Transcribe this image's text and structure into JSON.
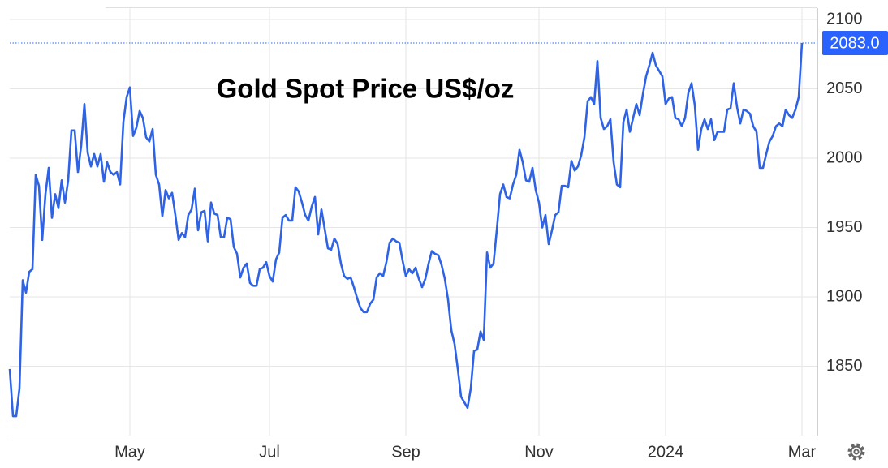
{
  "chart_data": {
    "type": "line",
    "title": "Gold Spot Price US$/oz",
    "categories": [
      null,
      null,
      null,
      null,
      null,
      null,
      null,
      null,
      null,
      null,
      null,
      null,
      null,
      null,
      null,
      null,
      null,
      null,
      null,
      null,
      null,
      null,
      null,
      null,
      null,
      null,
      null,
      null,
      null,
      null,
      null,
      null,
      null,
      null,
      null,
      null,
      null,
      "May",
      null,
      null,
      null,
      null,
      null,
      null,
      null,
      null,
      null,
      null,
      null,
      null,
      null,
      null,
      null,
      null,
      null,
      null,
      null,
      null,
      null,
      null,
      null,
      null,
      null,
      null,
      null,
      null,
      null,
      null,
      null,
      null,
      null,
      null,
      null,
      null,
      null,
      null,
      null,
      null,
      null,
      null,
      "Jul",
      null,
      null,
      null,
      null,
      null,
      null,
      null,
      null,
      null,
      null,
      null,
      null,
      null,
      null,
      null,
      null,
      null,
      null,
      null,
      null,
      null,
      null,
      null,
      null,
      null,
      null,
      null,
      null,
      null,
      null,
      null,
      null,
      null,
      null,
      null,
      null,
      null,
      null,
      null,
      null,
      null,
      "Sep",
      null,
      null,
      null,
      null,
      null,
      null,
      null,
      null,
      null,
      null,
      null,
      null,
      null,
      null,
      null,
      null,
      null,
      null,
      null,
      null,
      null,
      null,
      null,
      null,
      null,
      null,
      null,
      null,
      null,
      null,
      null,
      null,
      null,
      null,
      null,
      null,
      null,
      null,
      null,
      null,
      "Nov",
      null,
      null,
      null,
      null,
      null,
      null,
      null,
      null,
      null,
      null,
      null,
      null,
      null,
      null,
      null,
      null,
      null,
      null,
      null,
      null,
      null,
      null,
      null,
      null,
      null,
      null,
      null,
      null,
      null,
      null,
      null,
      null,
      null,
      null,
      null,
      null,
      null,
      null,
      "2024",
      null,
      null,
      null,
      null,
      null,
      null,
      null,
      null,
      null,
      null,
      null,
      null,
      null,
      null,
      null,
      null,
      null,
      null,
      null,
      null,
      null,
      null,
      null,
      null,
      null,
      null,
      null,
      null,
      null,
      null,
      null,
      null,
      null,
      null,
      null,
      null,
      null,
      null,
      null,
      null,
      null,
      "Mar"
    ],
    "values": [
      1848,
      1814,
      1814,
      1834,
      1912,
      1903,
      1918,
      1920,
      1988,
      1980,
      1941,
      1974,
      1993,
      1957,
      1974,
      1964,
      1984,
      1968,
      1984,
      2020,
      2020,
      1990,
      2009,
      2039,
      2004,
      1994,
      2003,
      1994,
      2003,
      1983,
      1997,
      1990,
      1988,
      1990,
      1981,
      2026,
      2044,
      2051,
      2016,
      2022,
      2034,
      2029,
      2015,
      2012,
      2021,
      1988,
      1981,
      1958,
      1977,
      1971,
      1975,
      1959,
      1941,
      1946,
      1943,
      1959,
      1963,
      1978,
      1948,
      1961,
      1962,
      1940,
      1968,
      1960,
      1959,
      1943,
      1943,
      1957,
      1956,
      1936,
      1931,
      1914,
      1921,
      1924,
      1910,
      1908,
      1908,
      1920,
      1921,
      1925,
      1915,
      1911,
      1927,
      1932,
      1957,
      1959,
      1955,
      1955,
      1979,
      1976,
      1968,
      1959,
      1955,
      1965,
      1972,
      1945,
      1963,
      1949,
      1935,
      1934,
      1942,
      1938,
      1924,
      1915,
      1913,
      1914,
      1907,
      1899,
      1892,
      1889,
      1889,
      1895,
      1898,
      1914,
      1917,
      1915,
      1925,
      1939,
      1942,
      1940,
      1939,
      1926,
      1915,
      1920,
      1917,
      1921,
      1913,
      1907,
      1913,
      1924,
      1933,
      1931,
      1930,
      1923,
      1913,
      1898,
      1876,
      1866,
      1848,
      1828,
      1824,
      1820,
      1834,
      1861,
      1862,
      1875,
      1869,
      1932,
      1921,
      1924,
      1948,
      1974,
      1981,
      1972,
      1971,
      1981,
      1988,
      2006,
      1997,
      1984,
      1983,
      1993,
      1977,
      1968,
      1950,
      1959,
      1938,
      1948,
      1959,
      1961,
      1980,
      1980,
      1979,
      1998,
      1991,
      1994,
      2002,
      2015,
      2041,
      2044,
      2039,
      2070,
      2029,
      2021,
      2023,
      2028,
      1997,
      1981,
      1979,
      2026,
      2035,
      2019,
      2029,
      2039,
      2031,
      2046,
      2059,
      2067,
      2076,
      2067,
      2063,
      2059,
      2039,
      2043,
      2044,
      2029,
      2028,
      2023,
      2029,
      2047,
      2054,
      2038,
      2006,
      2021,
      2028,
      2021,
      2028,
      2013,
      2019,
      2019,
      2019,
      2035,
      2036,
      2054,
      2037,
      2025,
      2035,
      2034,
      2032,
      2023,
      2019,
      1993,
      1993,
      2003,
      2012,
      2016,
      2023,
      2025,
      2023,
      2035,
      2031,
      2029,
      2035,
      2044,
      2083
    ],
    "value_labels": [
      null,
      null,
      null,
      null,
      null,
      null,
      null,
      null,
      null,
      null,
      null,
      null,
      null,
      null,
      null,
      null,
      null,
      null,
      null,
      null,
      null,
      null,
      null,
      null,
      null,
      null,
      null,
      null,
      null,
      null,
      null,
      null,
      null,
      null,
      null,
      null,
      null,
      null,
      null,
      null,
      null,
      null,
      null,
      null,
      null,
      null,
      null,
      null,
      null,
      null,
      null,
      null,
      null,
      null,
      null,
      null,
      null,
      null,
      null,
      null,
      null,
      null,
      null,
      null,
      null,
      null,
      null,
      null,
      null,
      null,
      null,
      null,
      null,
      null,
      null,
      null,
      null,
      null,
      null,
      null,
      null,
      null,
      null,
      null,
      null,
      null,
      null,
      null,
      null,
      null,
      null,
      null,
      null,
      null,
      null,
      null,
      null,
      null,
      null,
      null,
      null,
      null,
      null,
      null,
      null,
      null,
      null,
      null,
      null,
      null,
      null,
      null,
      null,
      null,
      null,
      null,
      null,
      null,
      null,
      null,
      null,
      null,
      null,
      null,
      null,
      null,
      null,
      null,
      null,
      null,
      null,
      null,
      null,
      null,
      null,
      null,
      null,
      null,
      null,
      null,
      null,
      null,
      null,
      null,
      null,
      null,
      null,
      null,
      null,
      null,
      null,
      null,
      null,
      null,
      null,
      null,
      null,
      null,
      null,
      null,
      null,
      null,
      null,
      null,
      null,
      null,
      null,
      null,
      null,
      null,
      null,
      null,
      null,
      null,
      null,
      null,
      null,
      null,
      null,
      null,
      null,
      null,
      null,
      null,
      null,
      null,
      null,
      null,
      null,
      null,
      null,
      null,
      null,
      null,
      null,
      null,
      null,
      null,
      null,
      null,
      null,
      null,
      null,
      null,
      null,
      null,
      null,
      null,
      null,
      null,
      null,
      null,
      null,
      null,
      null,
      null,
      null,
      null,
      null,
      null,
      null,
      null,
      null,
      null,
      null,
      null,
      null,
      null,
      null,
      null,
      null,
      null,
      null,
      null,
      null,
      null,
      null,
      null,
      null,
      null,
      null,
      null,
      null,
      null,
      "2083.0"
    ],
    "color": "#2f63e6",
    "ylim": [
      1800,
      2108
    ],
    "yticks": [
      1850,
      1900,
      1950,
      2000,
      2050,
      2100
    ],
    "grid": true
  }
}
